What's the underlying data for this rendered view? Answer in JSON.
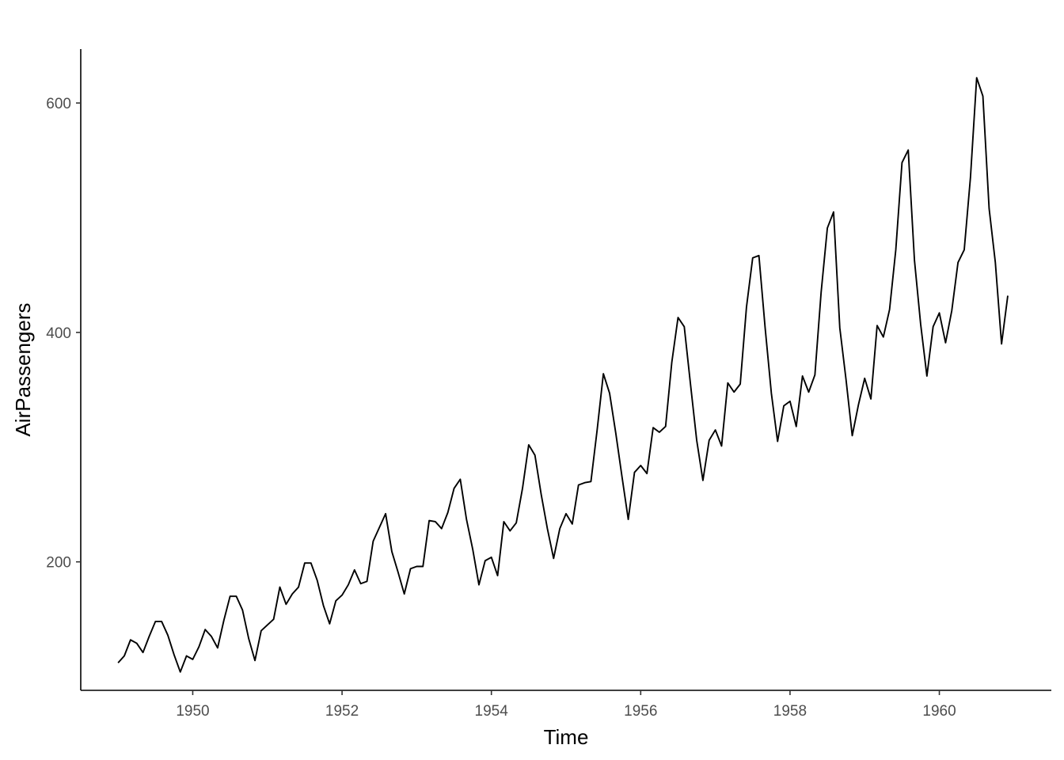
{
  "chart_data": {
    "type": "line",
    "title": "",
    "xlabel": "Time",
    "ylabel": "AirPassengers",
    "x_ticks": [
      "1950",
      "1952",
      "1954",
      "1956",
      "1958",
      "1960"
    ],
    "y_ticks": [
      "200",
      "400",
      "600"
    ],
    "xlim": [
      1948.5,
      1961.5
    ],
    "ylim": [
      88,
      647
    ],
    "grid": false,
    "legend": "none",
    "line_color": "#000000",
    "x_start": 1949,
    "x_step_months": 1,
    "series": [
      {
        "values": [
          112,
          118,
          132,
          129,
          121,
          135,
          148,
          148,
          136,
          119,
          104,
          118,
          115,
          126,
          141,
          135,
          125,
          149,
          170,
          170,
          158,
          133,
          114,
          140,
          145,
          150,
          178,
          163,
          172,
          178,
          199,
          199,
          184,
          162,
          146,
          166,
          171,
          180,
          193,
          181,
          183,
          218,
          230,
          242,
          209,
          191,
          172,
          194,
          196,
          196,
          236,
          235,
          229,
          243,
          264,
          272,
          237,
          211,
          180,
          201,
          204,
          188,
          235,
          227,
          234,
          264,
          302,
          293,
          259,
          229,
          203,
          229,
          242,
          233,
          267,
          269,
          270,
          315,
          364,
          347,
          312,
          274,
          237,
          278,
          284,
          277,
          317,
          313,
          318,
          374,
          413,
          405,
          355,
          306,
          271,
          306,
          315,
          301,
          356,
          348,
          355,
          422,
          465,
          467,
          404,
          347,
          305,
          336,
          340,
          318,
          362,
          348,
          363,
          435,
          491,
          505,
          404,
          359,
          310,
          337,
          360,
          342,
          406,
          396,
          420,
          472,
          548,
          559,
          463,
          407,
          362,
          405,
          417,
          391,
          419,
          461,
          472,
          535,
          622,
          606,
          508,
          461,
          390,
          432
        ]
      }
    ]
  }
}
